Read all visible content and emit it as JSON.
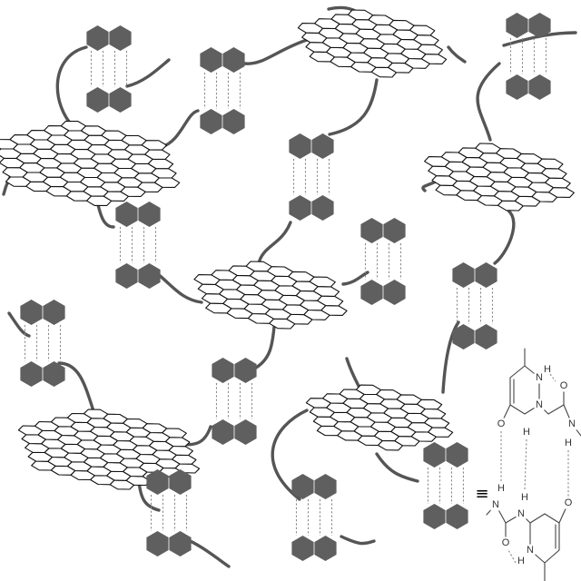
{
  "figure": {
    "description_role": "supramolecular network of graphene-like polycyclic aromatic sheets crosslinked by quadruple-hydrogen-bonded UPy dimers",
    "colors": {
      "background": "#ffffff",
      "chain": "#555555",
      "dimer_fill": "#5f5f5f",
      "hydrogen_bond": "#8a8a8a",
      "sheet_stroke": "#111111",
      "sheet_fill": "#ffffff",
      "molecule_stroke": "#444444",
      "molecule_text": "#333333"
    },
    "sheet_count": 6,
    "dimer_count": 13
  },
  "legend": {
    "equivalence_symbol": "≡",
    "atoms": {
      "oxygen": "O",
      "nitrogen": "N",
      "hydrogen": "H"
    }
  }
}
